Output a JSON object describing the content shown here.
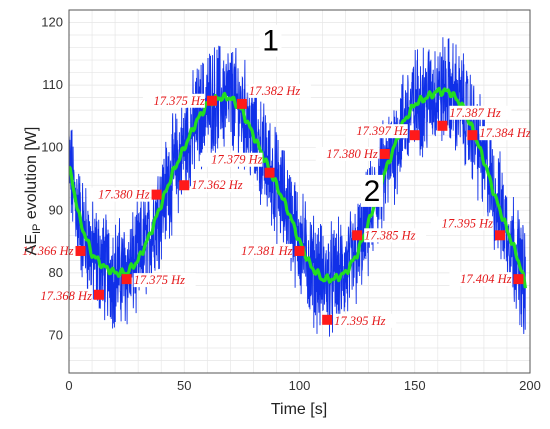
{
  "chart_data": {
    "type": "line",
    "title": "",
    "xlabel": "Time [s]",
    "ylabel": "AE",
    "ylabel_sub": "IP",
    "ylabel_rest": " evolution [W]",
    "xlim": [
      0,
      200
    ],
    "ylim": [
      64,
      122
    ],
    "xticks": [
      0,
      50,
      100,
      150,
      200
    ],
    "yticks": [
      70,
      80,
      90,
      100,
      110,
      120
    ],
    "grid": true,
    "colors": {
      "raw": "#1030e8",
      "smooth": "#22dd22",
      "marker": "#ff1a1a",
      "marker_text": "#e41a1c"
    },
    "raw_noise_band_W": 7,
    "smoothed_series": {
      "x": [
        0,
        5,
        10,
        15,
        20,
        25,
        30,
        35,
        40,
        45,
        50,
        55,
        60,
        65,
        70,
        75,
        80,
        85,
        90,
        95,
        100,
        105,
        110,
        115,
        120,
        125,
        130,
        135,
        140,
        145,
        150,
        155,
        160,
        165,
        170,
        175,
        180,
        185,
        190,
        195,
        198
      ],
      "y": [
        97,
        88,
        83,
        81,
        80,
        80,
        82,
        86,
        91,
        96,
        100,
        104,
        107,
        108,
        108,
        106,
        102,
        98,
        94,
        90,
        85,
        81,
        79,
        79,
        80,
        83,
        88,
        94,
        99,
        104,
        107,
        108,
        109,
        109,
        107,
        103,
        98,
        92,
        87,
        82,
        78
      ]
    },
    "markers": [
      {
        "x": 5,
        "y": 83.5,
        "label": "17.366 Hz",
        "side": "left",
        "dy": 0
      },
      {
        "x": 13,
        "y": 76.5,
        "label": "17.368 Hz",
        "side": "left",
        "dy": 1
      },
      {
        "x": 25,
        "y": 79,
        "label": "17.375 Hz",
        "side": "right",
        "dy": 1
      },
      {
        "x": 38,
        "y": 92.5,
        "label": "17.380 Hz",
        "side": "left",
        "dy": 0
      },
      {
        "x": 50,
        "y": 94,
        "label": "17.362 Hz",
        "side": "right",
        "dy": 0
      },
      {
        "x": 62,
        "y": 107.5,
        "label": "17.375 Hz",
        "side": "left",
        "dy": 0
      },
      {
        "x": 75,
        "y": 107,
        "label": "17.382 Hz",
        "side": "right",
        "dy": -13
      },
      {
        "x": 87,
        "y": 96,
        "label": "17.379 Hz",
        "side": "left",
        "dy": -13
      },
      {
        "x": 100,
        "y": 83.5,
        "label": "17.381 Hz",
        "side": "left",
        "dy": 0
      },
      {
        "x": 112,
        "y": 72.5,
        "label": "17.395 Hz",
        "side": "right",
        "dy": 1
      },
      {
        "x": 125,
        "y": 86,
        "label": "17.385 Hz",
        "side": "right",
        "dy": 0
      },
      {
        "x": 137,
        "y": 99,
        "label": "17.380 Hz",
        "side": "left",
        "dy": 0
      },
      {
        "x": 150,
        "y": 102,
        "label": "17.397 Hz",
        "side": "left",
        "dy": -4
      },
      {
        "x": 162,
        "y": 103.5,
        "label": "17.387 Hz",
        "side": "right",
        "dy": -13
      },
      {
        "x": 175,
        "y": 102,
        "label": "17.384 Hz",
        "side": "right",
        "dy": -2
      },
      {
        "x": 187,
        "y": 86,
        "label": "17.395 Hz",
        "side": "left",
        "dy": -12
      },
      {
        "x": 195,
        "y": 79,
        "label": "17.404 Hz",
        "side": "left",
        "dy": 0
      }
    ],
    "annotations": [
      {
        "text": "1",
        "x": 87,
        "y": 115.5
      },
      {
        "text": "2",
        "x": 131,
        "y": 91.5
      }
    ]
  }
}
